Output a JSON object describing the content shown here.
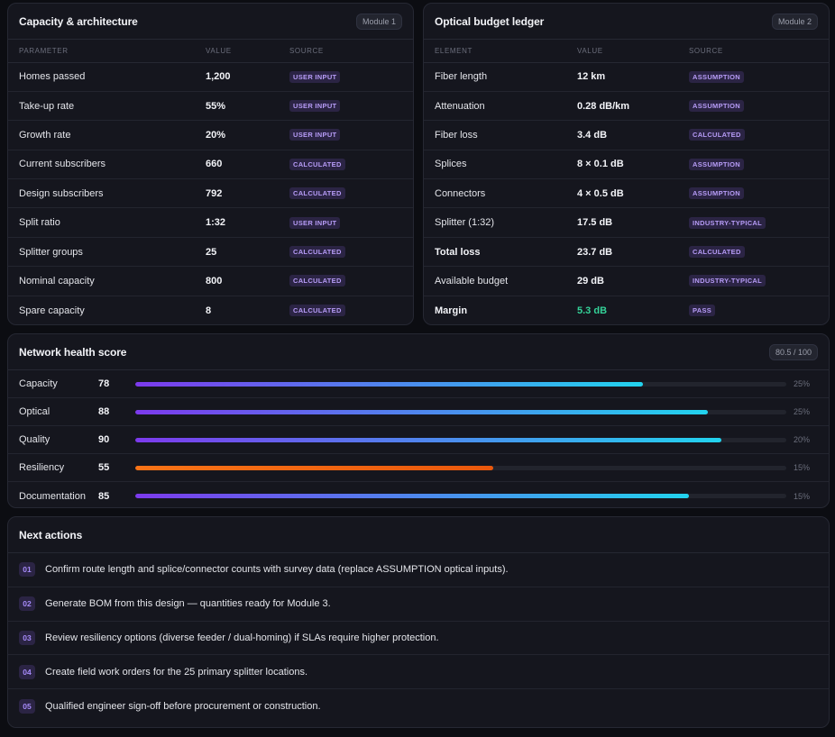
{
  "capacity": {
    "title": "Capacity & architecture",
    "chip": "Module 1",
    "columns": [
      "PARAMETER",
      "VALUE",
      "SOURCE"
    ],
    "rows": [
      {
        "param": "Homes passed",
        "value": "1,200",
        "source": "USER INPUT"
      },
      {
        "param": "Take-up rate",
        "value": "55%",
        "source": "USER INPUT"
      },
      {
        "param": "Growth rate",
        "value": "20%",
        "source": "USER INPUT"
      },
      {
        "param": "Current subscribers",
        "value": "660",
        "source": "CALCULATED"
      },
      {
        "param": "Design subscribers",
        "value": "792",
        "source": "CALCULATED"
      },
      {
        "param": "Split ratio",
        "value": "1:32",
        "source": "USER INPUT"
      },
      {
        "param": "Splitter groups",
        "value": "25",
        "source": "CALCULATED"
      },
      {
        "param": "Nominal capacity",
        "value": "800",
        "source": "CALCULATED"
      },
      {
        "param": "Spare capacity",
        "value": "8",
        "source": "CALCULATED"
      }
    ]
  },
  "optical": {
    "title": "Optical budget ledger",
    "chip": "Module 2",
    "columns": [
      "ELEMENT",
      "VALUE",
      "SOURCE"
    ],
    "rows": [
      {
        "param": "Fiber length",
        "value": "12 km",
        "source": "ASSUMPTION"
      },
      {
        "param": "Attenuation",
        "value": "0.28 dB/km",
        "source": "ASSUMPTION"
      },
      {
        "param": "Fiber loss",
        "value": "3.4 dB",
        "source": "CALCULATED"
      },
      {
        "param": "Splices",
        "value": "8 × 0.1 dB",
        "source": "ASSUMPTION"
      },
      {
        "param": "Connectors",
        "value": "4 × 0.5 dB",
        "source": "ASSUMPTION"
      },
      {
        "param": "Splitter (1:32)",
        "value": "17.5 dB",
        "source": "INDUSTRY-TYPICAL"
      },
      {
        "param": "Total loss",
        "value": "23.7 dB",
        "source": "CALCULATED"
      },
      {
        "param": "Available budget",
        "value": "29 dB",
        "source": "INDUSTRY-TYPICAL"
      },
      {
        "param": "Margin",
        "value": "5.3 dB",
        "source": "PASS"
      }
    ]
  },
  "health": {
    "title": "Network health score",
    "chip": "80.5 / 100",
    "rows": [
      {
        "label": "Capacity",
        "score": "78",
        "weight": "25%"
      },
      {
        "label": "Optical",
        "score": "88",
        "weight": "25%"
      },
      {
        "label": "Quality",
        "score": "90",
        "weight": "20%"
      },
      {
        "label": "Resiliency",
        "score": "55",
        "weight": "15%"
      },
      {
        "label": "Documentation",
        "score": "85",
        "weight": "15%"
      }
    ]
  },
  "actions": {
    "title": "Next actions",
    "items": [
      {
        "num": "01",
        "text": "Confirm route length and splice/connector counts with survey data (replace ASSUMPTION optical inputs)."
      },
      {
        "num": "02",
        "text": "Generate BOM from this design — quantities ready for Module 3."
      },
      {
        "num": "03",
        "text": "Review resiliency options (diverse feeder / dual-homing) if SLAs require higher protection."
      },
      {
        "num": "04",
        "text": "Create field work orders for the 25 primary splitter locations."
      },
      {
        "num": "05",
        "text": "Qualified engineer sign-off before procurement or construction."
      }
    ]
  }
}
